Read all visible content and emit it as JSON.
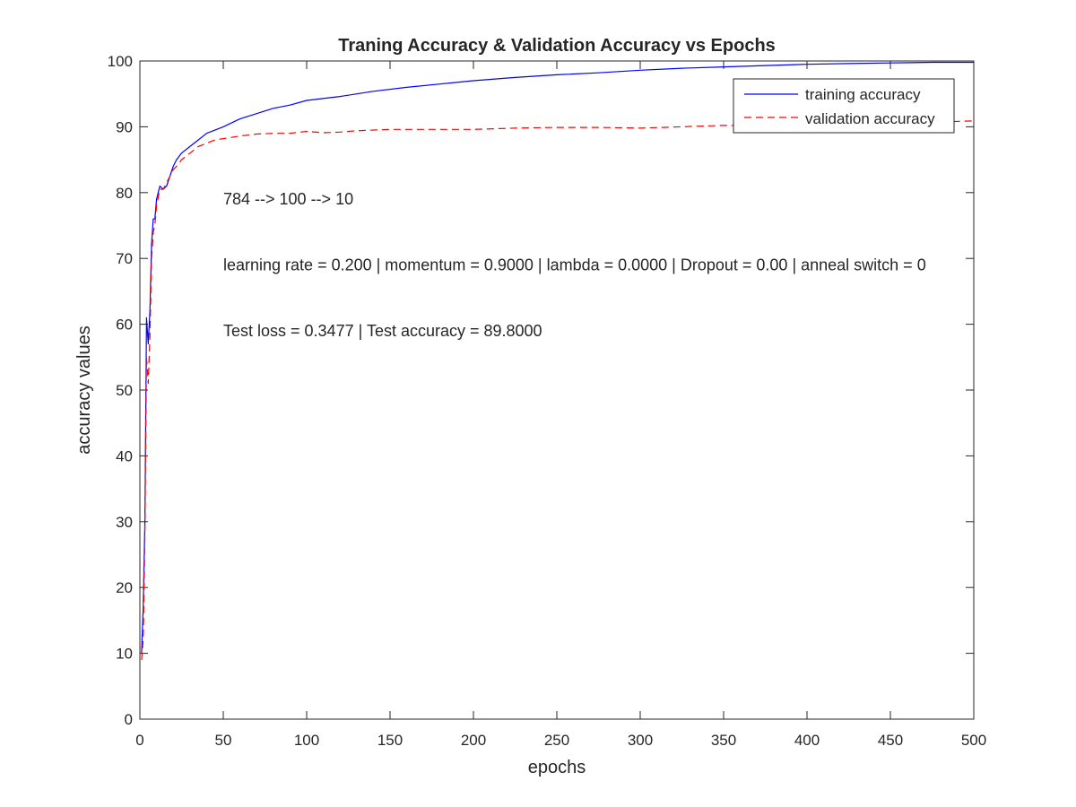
{
  "chart_data": {
    "type": "line",
    "title": "Traning Accuracy & Validation Accuracy vs Epochs",
    "xlabel": "epochs",
    "ylabel": "accuracy values",
    "xlim": [
      0,
      500
    ],
    "ylim": [
      0,
      100
    ],
    "xticks": [
      0,
      50,
      100,
      150,
      200,
      250,
      300,
      350,
      400,
      450,
      500
    ],
    "yticks": [
      0,
      10,
      20,
      30,
      40,
      50,
      60,
      70,
      80,
      90,
      100
    ],
    "grid": false,
    "legend_position": "top-right",
    "annotations": [
      {
        "text": "784 --> 100 --> 10",
        "x": 50,
        "y": 79
      },
      {
        "text": "learning rate = 0.200 | momentum = 0.9000 | lambda = 0.0000 | Dropout = 0.00 | anneal switch = 0",
        "x": 50,
        "y": 69
      },
      {
        "text": "Test loss = 0.3477 | Test accuracy = 89.8000",
        "x": 50,
        "y": 59
      }
    ],
    "series": [
      {
        "name": "training accuracy",
        "color": "#0000ff",
        "style": "solid",
        "x": [
          1,
          2,
          3,
          4,
          5,
          6,
          7,
          8,
          9,
          10,
          12,
          14,
          16,
          18,
          20,
          22,
          25,
          30,
          35,
          40,
          45,
          50,
          60,
          70,
          80,
          90,
          100,
          120,
          140,
          160,
          180,
          200,
          225,
          250,
          275,
          300,
          325,
          350,
          375,
          400,
          425,
          450,
          475,
          500
        ],
        "y": [
          10,
          17,
          30,
          61,
          57,
          62,
          72,
          76,
          76,
          79,
          81,
          80.5,
          81,
          82.5,
          84,
          85,
          86,
          87,
          88,
          89,
          89.5,
          90,
          91.2,
          92,
          92.8,
          93.3,
          94,
          94.6,
          95.4,
          96,
          96.5,
          97,
          97.5,
          97.9,
          98.2,
          98.6,
          98.9,
          99.1,
          99.3,
          99.5,
          99.6,
          99.7,
          99.8,
          99.8
        ]
      },
      {
        "name": "validation accuracy",
        "color": "#ff0000",
        "style": "dashed",
        "x": [
          1,
          2,
          3,
          4,
          5,
          6,
          7,
          8,
          9,
          10,
          12,
          14,
          16,
          18,
          20,
          22,
          25,
          30,
          35,
          40,
          45,
          50,
          60,
          70,
          80,
          90,
          100,
          110,
          120,
          130,
          150,
          175,
          200,
          225,
          250,
          275,
          300,
          325,
          350,
          375,
          400,
          425,
          450,
          475,
          500
        ],
        "y": [
          9,
          12,
          28,
          55,
          51,
          58,
          70,
          74,
          75,
          78,
          80.5,
          80.5,
          81.5,
          82.5,
          83.5,
          84,
          85,
          86,
          87,
          87.5,
          88,
          88.2,
          88.6,
          88.9,
          89,
          89,
          89.3,
          89.1,
          89.2,
          89.4,
          89.6,
          89.6,
          89.6,
          89.8,
          89.9,
          89.9,
          89.8,
          90,
          90.2,
          90.2,
          90.5,
          90.6,
          90.6,
          90.7,
          90.9
        ]
      }
    ]
  }
}
